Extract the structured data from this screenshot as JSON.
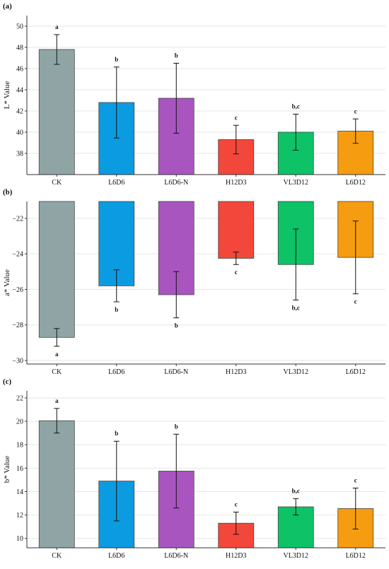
{
  "chart_data": [
    {
      "type": "bar",
      "panel_label": "(a)",
      "ylabel": "L* Value",
      "categories": [
        "CK",
        "L6D6",
        "L6D6-N",
        "H12D3",
        "VL3D12",
        "L6D12"
      ],
      "values": [
        47.8,
        42.8,
        43.2,
        39.3,
        40.0,
        40.1
      ],
      "errors": [
        1.4,
        3.35,
        3.3,
        1.35,
        1.7,
        1.15
      ],
      "significance": [
        "a",
        "b",
        "b",
        "c",
        "b,c",
        "c"
      ],
      "ylim": [
        36,
        51
      ],
      "yticks": [
        38,
        40,
        42,
        44,
        46,
        48,
        50
      ],
      "bars_from": "bottom",
      "grid": true
    },
    {
      "type": "bar",
      "panel_label": "(b)",
      "ylabel": "a* Value",
      "categories": [
        "CK",
        "L6D6",
        "L6D6-N",
        "H12D3",
        "VL3D12",
        "L6D12"
      ],
      "values": [
        -28.7,
        -25.8,
        -26.3,
        -24.25,
        -24.6,
        -24.2
      ],
      "errors": [
        0.5,
        0.9,
        1.3,
        0.35,
        2.0,
        2.05
      ],
      "significance": [
        "a",
        "b",
        "b",
        "c",
        "b,c",
        "c"
      ],
      "ylim": [
        -30.2,
        -21.05
      ],
      "yticks": [
        -30,
        -28,
        -26,
        -24,
        -22
      ],
      "tick_labels": [
        "−30",
        "−28",
        "−26",
        "−24",
        "−22"
      ],
      "bars_from": "top",
      "grid": true
    },
    {
      "type": "bar",
      "panel_label": "(c)",
      "ylabel": "b* Value",
      "categories": [
        "CK",
        "L6D6",
        "L6D6-N",
        "H12D3",
        "VL3D12",
        "L6D12"
      ],
      "values": [
        20.05,
        14.9,
        15.75,
        11.3,
        12.7,
        12.55
      ],
      "errors": [
        1.05,
        3.4,
        3.15,
        0.95,
        0.7,
        1.75
      ],
      "significance": [
        "a",
        "b",
        "b",
        "c",
        "b,c",
        "c"
      ],
      "ylim": [
        9.2,
        22.6
      ],
      "yticks": [
        10,
        12,
        14,
        16,
        18,
        20,
        22
      ],
      "bars_from": "bottom",
      "grid": true
    }
  ],
  "colors": {
    "CK": "#8fa5a5",
    "L6D6": "#0b9be0",
    "L6D6-N": "#a955c0",
    "H12D3": "#f2473a",
    "VL3D12": "#0dc267",
    "L6D12": "#f59c10",
    "grid": "#e6e6e6",
    "axis": "#333333",
    "bar_edge": "#444444"
  }
}
